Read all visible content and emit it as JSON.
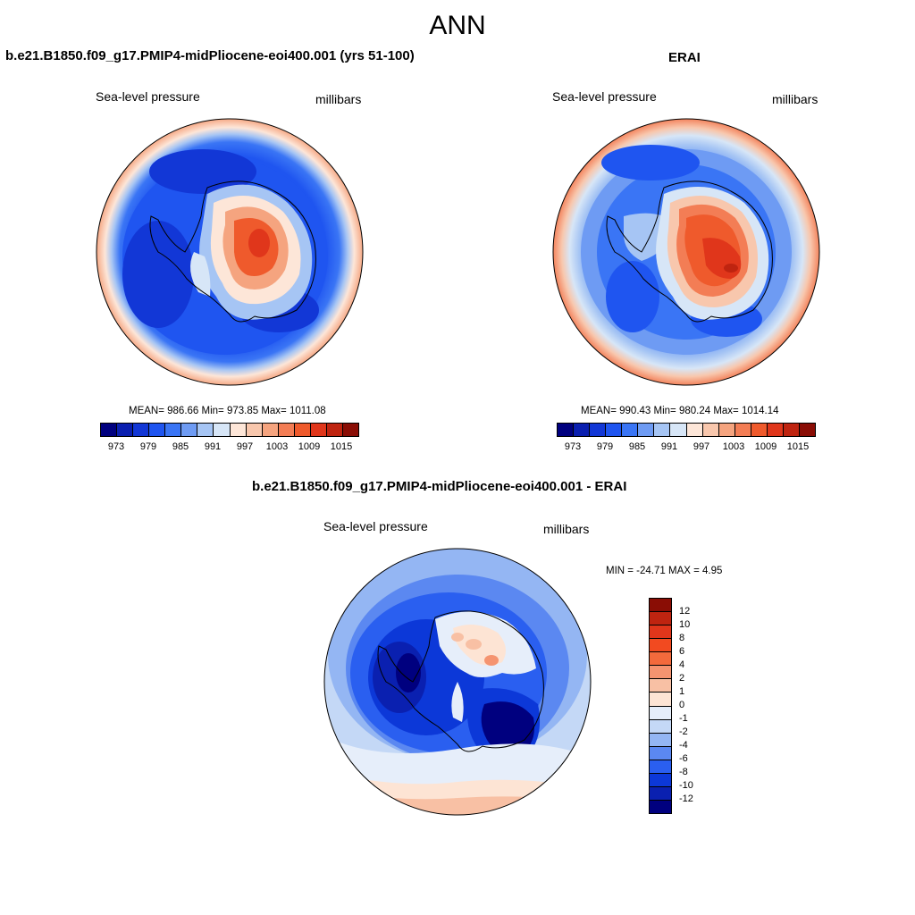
{
  "main_title": "ANN",
  "panels": [
    {
      "title": "b.e21.B1850.f09_g17.PMIP4-midPliocene-eoi400.001 (yrs 51-100)",
      "left_label": "Sea-level pressure",
      "right_label": "millibars",
      "stats": "MEAN= 986.66  Min= 973.85  Max= 1011.08",
      "legend_ticks": [
        "973",
        "979",
        "985",
        "991",
        "997",
        "1003",
        "1009",
        "1015"
      ]
    },
    {
      "title": "ERAI",
      "left_label": "Sea-level pressure",
      "right_label": "millibars",
      "stats": "MEAN= 990.43  Min= 980.24  Max= 1014.14",
      "legend_ticks": [
        "973",
        "979",
        "985",
        "991",
        "997",
        "1003",
        "1009",
        "1015"
      ]
    },
    {
      "title": "b.e21.B1850.f09_g17.PMIP4-midPliocene-eoi400.001 - ERAI",
      "left_label": "Sea-level pressure",
      "right_label": "millibars",
      "stats": "MIN = -24.71 MAX =   4.95",
      "legend_ticks": [
        "12",
        "10",
        "8",
        "6",
        "4",
        "2",
        "1",
        "0",
        "-1",
        "-2",
        "-4",
        "-6",
        "-8",
        "-10",
        "-12"
      ]
    }
  ],
  "colors": {
    "abs_scale": [
      "#00007f",
      "#0a1fb0",
      "#1237d6",
      "#1f55f0",
      "#3a75f5",
      "#6e9bf3",
      "#a6c5f4",
      "#d7e6f7",
      "#fde6d8",
      "#f8c7ad",
      "#f5a47f",
      "#f37d55",
      "#ef5a2c",
      "#e0361b",
      "#bf2410",
      "#8a0d05"
    ],
    "diff_scale": [
      "#8a0d05",
      "#bf2410",
      "#e0361b",
      "#f24a20",
      "#f36a3c",
      "#f59470",
      "#f8c0a4",
      "#fde4d4",
      "#e6eefa",
      "#c4d8f6",
      "#94b6f3",
      "#5b88f1",
      "#2a5ff0",
      "#0c38d8",
      "#0a20b0",
      "#00007f"
    ],
    "coastline": "#000000"
  }
}
